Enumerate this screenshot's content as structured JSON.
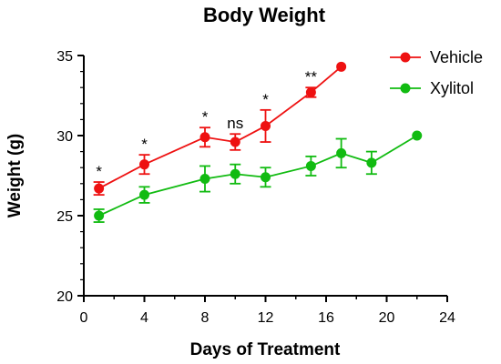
{
  "chart_data": {
    "type": "line",
    "title": "Body Weight",
    "xlabel": "Days of Treatment",
    "ylabel": "Weight (g)",
    "xlim": [
      0,
      24
    ],
    "ylim": [
      20,
      35
    ],
    "xticks": [
      0,
      4,
      8,
      12,
      16,
      20,
      24
    ],
    "yticks": [
      20,
      25,
      30,
      35
    ],
    "grid": false,
    "legend_position": "top-right",
    "series": [
      {
        "name": "Vehicle",
        "color": "#ee1111",
        "x": [
          1,
          4,
          8,
          10,
          12,
          15,
          17
        ],
        "y": [
          26.7,
          28.2,
          29.9,
          29.6,
          30.6,
          32.7,
          34.3
        ],
        "err": [
          0.4,
          0.6,
          0.6,
          0.5,
          1.0,
          0.3,
          0.0
        ]
      },
      {
        "name": "Xylitol",
        "color": "#11bb11",
        "x": [
          1,
          4,
          8,
          10,
          12,
          15,
          17,
          19,
          22
        ],
        "y": [
          25.0,
          26.3,
          27.3,
          27.6,
          27.4,
          28.1,
          28.9,
          28.3,
          30.0
        ],
        "err": [
          0.4,
          0.5,
          0.8,
          0.6,
          0.6,
          0.6,
          0.9,
          0.7,
          0.0
        ]
      }
    ],
    "annotations": [
      {
        "x": 1,
        "y": 27.1,
        "text": "*"
      },
      {
        "x": 4,
        "y": 28.8,
        "text": "*"
      },
      {
        "x": 8,
        "y": 30.5,
        "text": "*"
      },
      {
        "x": 10,
        "y": 30.1,
        "text": "ns"
      },
      {
        "x": 12,
        "y": 31.6,
        "text": "*"
      },
      {
        "x": 15,
        "y": 33.0,
        "text": "**"
      }
    ]
  }
}
